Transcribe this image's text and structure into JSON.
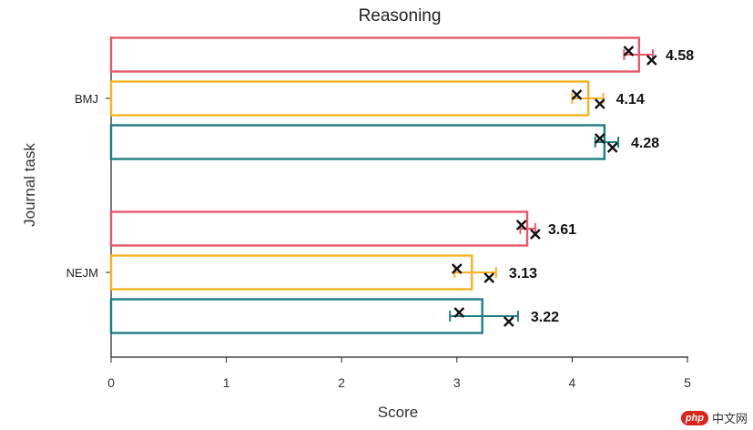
{
  "chart_data": {
    "type": "bar",
    "orientation": "horizontal",
    "title": "Reasoning",
    "xlabel": "Score",
    "ylabel": "Journal task",
    "xlim": [
      0,
      5
    ],
    "xticks": [
      "0",
      "1",
      "2",
      "3",
      "4",
      "5"
    ],
    "grid": false,
    "categories": [
      "BMJ",
      "NEJM"
    ],
    "series": [
      {
        "color": "#e8576b",
        "values": [
          4.58,
          3.61
        ],
        "labels": [
          "4.58",
          "3.61"
        ],
        "error": [
          [
            4.45,
            4.7
          ],
          [
            3.55,
            3.68
          ]
        ],
        "points": [
          [
            4.49,
            4.69
          ],
          [
            3.56,
            3.68
          ]
        ]
      },
      {
        "color": "#f5b323",
        "values": [
          4.14,
          3.13
        ],
        "labels": [
          "4.14",
          "3.13"
        ],
        "error": [
          [
            4.0,
            4.27
          ],
          [
            2.98,
            3.34
          ]
        ],
        "points": [
          [
            4.04,
            4.24
          ],
          [
            3.0,
            3.28
          ]
        ]
      },
      {
        "color": "#1f7d84",
        "values": [
          4.28,
          3.22
        ],
        "labels": [
          "4.28",
          "3.22"
        ],
        "error": [
          [
            4.2,
            4.4
          ],
          [
            2.94,
            3.53
          ]
        ],
        "points": [
          [
            4.24,
            4.35
          ],
          [
            3.02,
            3.45
          ]
        ]
      }
    ]
  },
  "watermark": {
    "badge": "php",
    "text": "中文网"
  }
}
